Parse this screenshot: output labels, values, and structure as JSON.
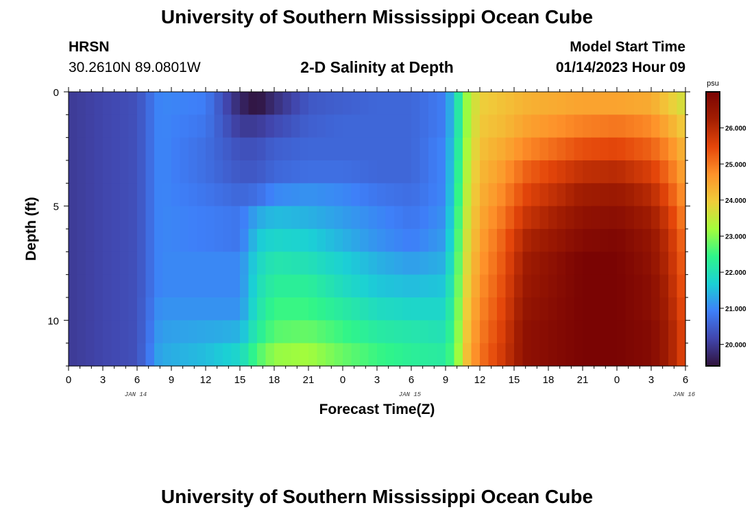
{
  "header": {
    "title": "University of Southern Mississippi Ocean Cube",
    "station": "HRSN",
    "coords": "30.2610N  89.0801W",
    "subtitle": "2-D Salinity at Depth",
    "model_start_label": "Model Start Time",
    "model_start_value": "01/14/2023 Hour 09"
  },
  "footer": {
    "title": "University of Southern Mississippi Ocean Cube"
  },
  "colors": {
    "colormap": [
      "#30123b",
      "#4146ad",
      "#3e7ff8",
      "#1bd0d5",
      "#2ff58a",
      "#a4fc3c",
      "#f0cc3a",
      "#fe922a",
      "#e4460a",
      "#a31e02",
      "#7a0403"
    ]
  },
  "chart_data": {
    "type": "heatmap",
    "title": "2-D Salinity at Depth",
    "xlabel": "Forecast Time(Z)",
    "ylabel": "Depth (ft)",
    "x_tick_labels": [
      "0",
      "3",
      "6",
      "9",
      "12",
      "15",
      "18",
      "21",
      "0",
      "3",
      "6",
      "9",
      "12",
      "15",
      "18",
      "21",
      "0",
      "3",
      "6"
    ],
    "x_date_labels": [
      "JAN 14",
      "JAN 15",
      "JAN 16"
    ],
    "x_range_hours": [
      0,
      54
    ],
    "y_tick_labels": [
      "0",
      "5",
      "10"
    ],
    "y_range_ft": [
      0,
      12
    ],
    "colorbar": {
      "unit": "psu",
      "ticks": [
        "20.000",
        "21.000",
        "22.000",
        "23.000",
        "24.000",
        "25.000",
        "26.000"
      ],
      "range": [
        19.4,
        27.0
      ]
    },
    "depth_levels_ft": [
      0.5,
      1.5,
      2.5,
      3.5,
      4.5,
      5.5,
      6.5,
      7.5,
      8.5,
      9.5,
      10.5,
      11.5
    ],
    "time_nodes_hours": [
      0,
      6,
      8,
      12,
      15,
      16.5,
      18,
      21,
      24,
      27,
      30,
      33,
      34,
      35,
      36,
      38,
      40,
      45,
      48,
      51,
      52.5,
      54
    ],
    "salinity_psu": [
      [
        20.0,
        20.3,
        21.0,
        20.9,
        19.7,
        19.4,
        19.8,
        20.4,
        20.5,
        20.6,
        20.6,
        20.9,
        22.0,
        23.3,
        23.9,
        24.1,
        24.3,
        24.5,
        24.5,
        24.4,
        24.0,
        23.6
      ],
      [
        20.0,
        20.3,
        21.0,
        20.8,
        20.0,
        20.0,
        20.2,
        20.5,
        20.6,
        20.6,
        20.6,
        20.9,
        22.0,
        23.3,
        24.0,
        24.2,
        24.5,
        24.9,
        25.0,
        24.8,
        24.4,
        23.9
      ],
      [
        20.0,
        20.3,
        21.0,
        20.7,
        20.3,
        20.3,
        20.5,
        20.6,
        20.6,
        20.6,
        20.6,
        21.0,
        22.1,
        23.4,
        24.1,
        24.4,
        24.8,
        25.4,
        25.5,
        25.2,
        24.8,
        24.2
      ],
      [
        20.0,
        20.3,
        21.0,
        20.7,
        20.4,
        20.4,
        20.6,
        20.7,
        20.7,
        20.6,
        20.6,
        21.0,
        22.2,
        23.5,
        24.2,
        24.6,
        25.2,
        25.9,
        26.0,
        25.6,
        25.1,
        24.4
      ],
      [
        20.0,
        20.3,
        21.0,
        20.8,
        20.6,
        20.7,
        21.0,
        21.1,
        21.0,
        20.8,
        20.7,
        21.0,
        22.3,
        23.6,
        24.3,
        24.8,
        25.5,
        26.3,
        26.4,
        26.0,
        25.4,
        24.6
      ],
      [
        20.0,
        20.3,
        21.0,
        20.9,
        20.8,
        21.3,
        21.5,
        21.4,
        21.2,
        21.0,
        20.8,
        21.1,
        22.4,
        23.7,
        24.4,
        25.0,
        25.8,
        26.6,
        26.7,
        26.3,
        25.7,
        24.8
      ],
      [
        20.0,
        20.3,
        21.0,
        20.9,
        20.8,
        21.6,
        21.8,
        21.7,
        21.4,
        21.1,
        20.9,
        21.2,
        22.5,
        23.8,
        24.5,
        25.2,
        26.1,
        26.8,
        26.9,
        26.5,
        25.9,
        25.0
      ],
      [
        20.0,
        20.3,
        21.0,
        21.0,
        21.0,
        21.8,
        22.1,
        22.0,
        21.7,
        21.4,
        21.2,
        21.4,
        22.6,
        23.9,
        24.6,
        25.3,
        26.3,
        27.0,
        27.0,
        26.6,
        26.0,
        25.1
      ],
      [
        20.0,
        20.3,
        21.0,
        21.0,
        21.0,
        21.9,
        22.3,
        22.3,
        21.9,
        21.6,
        21.5,
        21.6,
        22.7,
        24.0,
        24.7,
        25.4,
        26.4,
        27.0,
        27.0,
        26.7,
        26.1,
        25.2
      ],
      [
        20.0,
        20.3,
        21.1,
        21.1,
        21.1,
        22.0,
        22.5,
        22.5,
        22.2,
        21.9,
        21.8,
        21.8,
        22.8,
        24.1,
        24.8,
        25.5,
        26.5,
        27.0,
        27.0,
        26.7,
        26.2,
        25.3
      ],
      [
        20.0,
        20.3,
        21.2,
        21.3,
        21.4,
        22.2,
        22.7,
        22.8,
        22.5,
        22.2,
        22.1,
        22.0,
        22.9,
        24.2,
        24.9,
        25.6,
        26.6,
        27.0,
        27.0,
        26.8,
        26.3,
        25.4
      ],
      [
        20.0,
        20.3,
        21.3,
        21.5,
        21.8,
        22.6,
        23.1,
        23.2,
        22.8,
        22.5,
        22.3,
        22.2,
        23.0,
        24.3,
        25.0,
        25.7,
        26.6,
        27.0,
        27.0,
        26.8,
        26.3,
        25.4
      ]
    ]
  }
}
